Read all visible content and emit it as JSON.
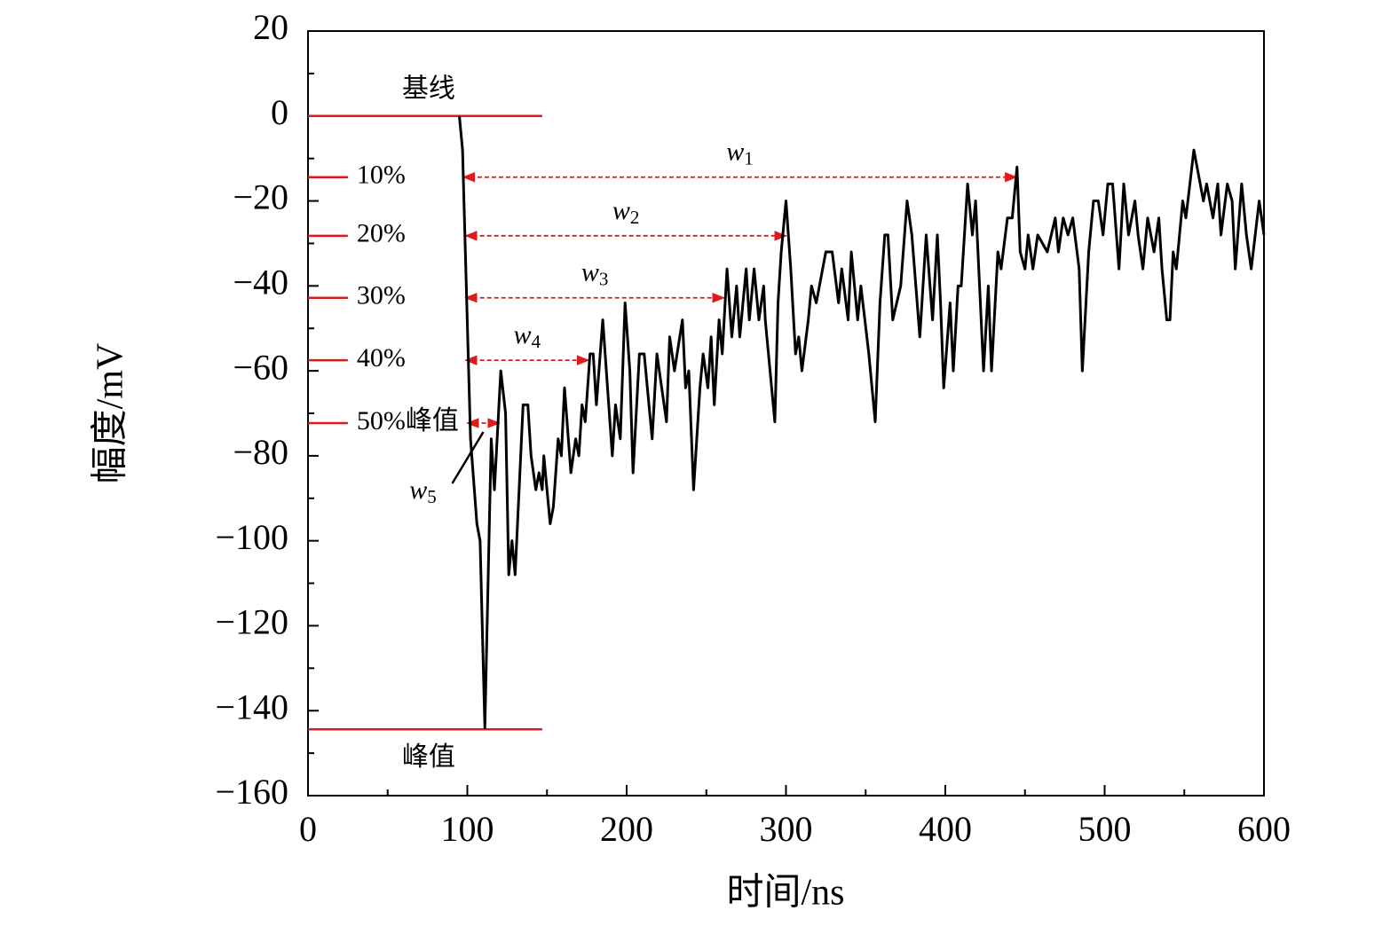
{
  "chart_data": {
    "type": "line",
    "xlabel": "时间/ns",
    "ylabel": "幅度/mV",
    "xlim": [
      0,
      600
    ],
    "xticks": [
      0,
      100,
      200,
      300,
      400,
      500,
      600
    ],
    "xminor": [
      50,
      150,
      250,
      350,
      450,
      550
    ],
    "ylim": [
      -160,
      20
    ],
    "yticks": [
      {
        "value": -160,
        "label": "−160"
      },
      {
        "value": -140,
        "label": "−140"
      },
      {
        "value": -120,
        "label": "−120"
      },
      {
        "value": -100,
        "label": "−100"
      },
      {
        "value": -80,
        "label": "−80"
      },
      {
        "value": -60,
        "label": "−60"
      },
      {
        "value": -40,
        "label": "−40"
      },
      {
        "value": -20,
        "label": "−20"
      },
      0,
      20
    ],
    "yminor": [
      -150,
      -130,
      -110,
      -90,
      -70,
      -50,
      -30,
      -10,
      10
    ],
    "color": "#000000",
    "x": [
      95,
      97,
      102,
      106,
      108,
      111,
      115,
      117,
      121,
      124,
      126,
      128,
      130,
      135,
      138,
      140,
      143,
      145,
      147,
      148,
      152,
      154,
      157,
      159,
      161,
      165,
      168,
      170,
      172,
      174,
      177,
      179,
      181,
      185,
      188,
      191,
      193,
      196,
      199,
      202,
      204,
      208,
      211,
      216,
      219,
      222,
      225,
      227,
      230,
      235,
      237,
      239,
      242,
      246,
      248,
      251,
      253,
      255,
      258,
      260,
      263,
      266,
      269,
      271,
      275,
      277,
      280,
      283,
      286,
      287,
      293,
      295,
      297,
      300,
      303,
      306,
      308,
      310,
      314,
      316,
      319,
      325,
      329,
      333,
      335,
      339,
      341,
      345,
      347,
      352,
      356,
      359,
      362,
      364,
      367,
      372,
      376,
      379,
      384,
      388,
      392,
      395,
      397,
      399,
      403,
      405,
      408,
      410,
      414,
      417,
      419,
      422,
      424,
      427,
      429,
      433,
      435,
      439,
      442,
      445,
      447,
      450,
      452,
      455,
      458,
      464,
      469,
      471,
      474,
      477,
      480,
      484,
      486,
      490,
      493,
      496,
      499,
      502,
      505,
      509,
      512,
      515,
      519,
      521,
      524,
      527,
      531,
      534,
      536,
      539,
      541,
      543,
      545,
      549,
      551,
      556,
      562,
      564,
      568,
      571,
      573,
      577,
      580,
      582,
      586,
      589,
      592,
      597,
      600
    ],
    "values": [
      0,
      -8,
      -76,
      -96,
      -100,
      -144,
      -76,
      -88,
      -60,
      -70,
      -108,
      -100,
      -108,
      -68,
      -68,
      -80,
      -88,
      -84,
      -88,
      -80,
      -96,
      -92,
      -76,
      -80,
      -64,
      -84,
      -76,
      -80,
      -68,
      -72,
      -56,
      -56,
      -68,
      -48,
      -64,
      -80,
      -68,
      -76,
      -44,
      -60,
      -84,
      -56,
      -56,
      -76,
      -56,
      -64,
      -72,
      -52,
      -60,
      -48,
      -64,
      -60,
      -88,
      -64,
      -56,
      -64,
      -52,
      -68,
      -48,
      -56,
      -36,
      -52,
      -40,
      -52,
      -36,
      -48,
      -36,
      -48,
      -40,
      -48,
      -72,
      -44,
      -32,
      -20,
      -36,
      -56,
      -52,
      -60,
      -48,
      -40,
      -44,
      -32,
      -32,
      -44,
      -36,
      -48,
      -32,
      -48,
      -40,
      -56,
      -72,
      -44,
      -28,
      -28,
      -48,
      -40,
      -20,
      -28,
      -52,
      -28,
      -48,
      -28,
      -44,
      -64,
      -44,
      -60,
      -40,
      -40,
      -16,
      -28,
      -20,
      -44,
      -60,
      -40,
      -60,
      -32,
      -36,
      -24,
      -24,
      -12,
      -32,
      -36,
      -28,
      -36,
      -28,
      -32,
      -24,
      -32,
      -24,
      -28,
      -24,
      -36,
      -60,
      -32,
      -20,
      -20,
      -28,
      -16,
      -16,
      -36,
      -16,
      -28,
      -20,
      -28,
      -36,
      -24,
      -32,
      -24,
      -36,
      -48,
      -48,
      -32,
      -36,
      -20,
      -24,
      -8,
      -20,
      -16,
      -24,
      -16,
      -28,
      -16,
      -20,
      -36,
      -16,
      -28,
      -36,
      -20,
      -28
    ],
    "reference_color": "#e0191b",
    "reference_lines": [
      {
        "label": "基线",
        "y": 0,
        "x": [
          0,
          147
        ]
      },
      {
        "label": "10%",
        "y": -14.4,
        "x": [
          0,
          25
        ]
      },
      {
        "label": "20%",
        "y": -28.2,
        "x": [
          0,
          25
        ]
      },
      {
        "label": "30%",
        "y": -42.8,
        "x": [
          0,
          25
        ]
      },
      {
        "label": "40%",
        "y": -57.5,
        "x": [
          0,
          25
        ]
      },
      {
        "label": "50%峰值",
        "y": -72.3,
        "x": [
          0,
          25
        ]
      },
      {
        "label": "峰值",
        "y": -144.4,
        "x": [
          0,
          147
        ]
      }
    ],
    "widths": [
      {
        "var": "w",
        "sub": "1",
        "y": -14.4,
        "x": [
          97.5,
          444.6
        ]
      },
      {
        "var": "w",
        "sub": "2",
        "y": -28.2,
        "x": [
          99,
          300
        ]
      },
      {
        "var": "w",
        "sub": "3",
        "y": -42.8,
        "x": [
          99,
          261
        ]
      },
      {
        "var": "w",
        "sub": "4",
        "y": -57.5,
        "x": [
          99,
          176
        ]
      },
      {
        "var": "w",
        "sub": "5",
        "y": -72.3,
        "x": [
          100,
          120
        ]
      }
    ]
  }
}
